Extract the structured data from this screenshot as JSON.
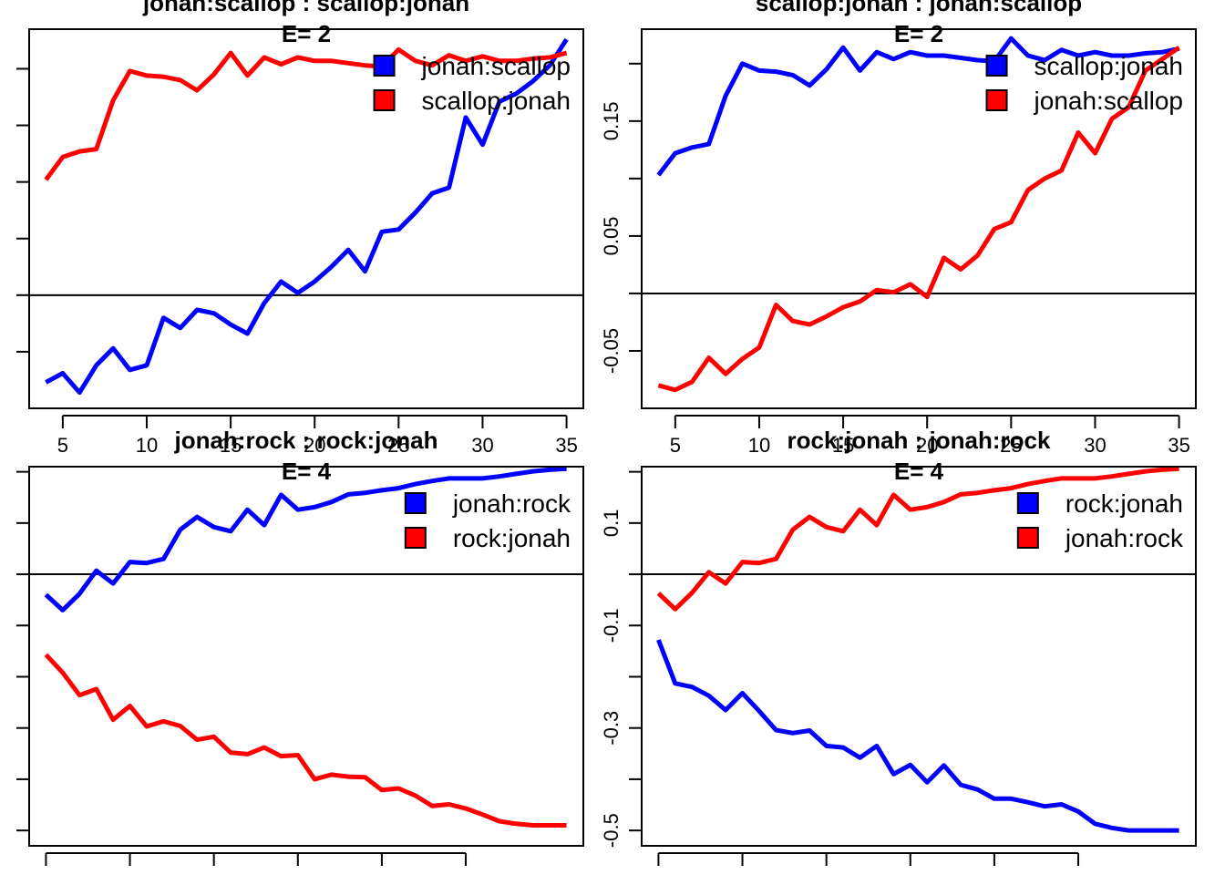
{
  "chart_data": [
    {
      "type": "line",
      "title": "jonah:scallop  :  scallop:jonah",
      "subtitle": "E= 2",
      "x": [
        4,
        5,
        6,
        7,
        8,
        9,
        10,
        11,
        12,
        13,
        14,
        15,
        16,
        17,
        18,
        19,
        20,
        21,
        22,
        23,
        24,
        25,
        26,
        27,
        28,
        29,
        30,
        31,
        32,
        33,
        34,
        35
      ],
      "xlim": [
        3,
        36
      ],
      "ylim": [
        -0.1,
        0.235
      ],
      "xticks": [
        5,
        10,
        15,
        20,
        25,
        30,
        35
      ],
      "xtick_labels": [
        "5",
        "10",
        "15",
        "20",
        "25",
        "30",
        "35"
      ],
      "yticks": [
        -0.05,
        0.0,
        0.05,
        0.1,
        0.15,
        0.2
      ],
      "ytick_labels": [],
      "hline": 0,
      "legend_position": "top-right",
      "series": [
        {
          "name": "jonah:scallop",
          "color": "#0000FF",
          "values": [
            -0.077,
            -0.069,
            -0.086,
            -0.062,
            -0.047,
            -0.066,
            -0.062,
            -0.02,
            -0.029,
            -0.013,
            -0.016,
            -0.026,
            -0.034,
            -0.007,
            0.012,
            0.002,
            0.012,
            0.025,
            0.04,
            0.021,
            0.056,
            0.058,
            0.073,
            0.09,
            0.095,
            0.157,
            0.133,
            0.171,
            0.178,
            0.189,
            0.203,
            0.226
          ]
        },
        {
          "name": "scallop:jonah",
          "color": "#FF0000",
          "values": [
            0.102,
            0.122,
            0.127,
            0.129,
            0.172,
            0.198,
            0.194,
            0.193,
            0.19,
            0.181,
            0.195,
            0.214,
            0.194,
            0.21,
            0.204,
            0.21,
            0.207,
            0.207,
            0.205,
            0.203,
            0.202,
            0.217,
            0.207,
            0.203,
            0.212,
            0.207,
            0.211,
            0.207,
            0.207,
            0.209,
            0.21,
            0.214
          ]
        }
      ]
    },
    {
      "type": "line",
      "title": "scallop:jonah  :  jonah:scallop",
      "subtitle": "E= 2",
      "x": [
        4,
        5,
        6,
        7,
        8,
        9,
        10,
        11,
        12,
        13,
        14,
        15,
        16,
        17,
        18,
        19,
        20,
        21,
        22,
        23,
        24,
        25,
        26,
        27,
        28,
        29,
        30,
        31,
        32,
        33,
        34,
        35
      ],
      "xlim": [
        3,
        36
      ],
      "ylim": [
        -0.1,
        0.23
      ],
      "xticks": [
        5,
        10,
        15,
        20,
        25,
        30,
        35
      ],
      "xtick_labels": [
        "5",
        "10",
        "15",
        "20",
        "25",
        "30",
        "35"
      ],
      "yticks": [
        -0.05,
        0.05,
        0.15
      ],
      "ytick_labels": [
        "-0.05",
        "0.05",
        "0.15"
      ],
      "yticks_minor": [
        0.0,
        0.1,
        0.2
      ],
      "hline": 0,
      "legend_position": "top-right",
      "series": [
        {
          "name": "scallop:jonah",
          "color": "#0000FF",
          "values": [
            0.103,
            0.122,
            0.127,
            0.13,
            0.172,
            0.2,
            0.194,
            0.193,
            0.19,
            0.181,
            0.195,
            0.214,
            0.194,
            0.21,
            0.204,
            0.21,
            0.207,
            0.207,
            0.205,
            0.203,
            0.202,
            0.222,
            0.207,
            0.203,
            0.212,
            0.207,
            0.21,
            0.207,
            0.207,
            0.209,
            0.21,
            0.213
          ]
        },
        {
          "name": "jonah:scallop",
          "color": "#FF0000",
          "values": [
            -0.08,
            -0.084,
            -0.077,
            -0.056,
            -0.07,
            -0.057,
            -0.047,
            -0.01,
            -0.024,
            -0.027,
            -0.02,
            -0.012,
            -0.007,
            0.003,
            0.001,
            0.008,
            -0.003,
            0.031,
            0.021,
            0.033,
            0.056,
            0.062,
            0.09,
            0.1,
            0.107,
            0.14,
            0.122,
            0.152,
            0.162,
            0.194,
            0.204,
            0.214
          ]
        }
      ]
    },
    {
      "type": "line",
      "title": "jonah:rock  :  rock:jonah",
      "subtitle": "E= 4",
      "x": [
        4,
        5,
        6,
        7,
        8,
        9,
        10,
        11,
        12,
        13,
        14,
        15,
        16,
        17,
        18,
        19,
        20,
        21,
        22,
        23,
        24,
        25,
        26,
        27,
        28,
        29,
        30,
        31,
        32,
        33,
        34,
        35
      ],
      "xlim": [
        3,
        36
      ],
      "ylim": [
        -0.53,
        0.21
      ],
      "xticks": [
        4,
        9,
        14,
        19,
        24,
        29
      ],
      "xtick_labels": [],
      "yticks": [
        -0.5,
        -0.4,
        -0.3,
        -0.2,
        -0.1,
        0.0,
        0.1,
        0.2
      ],
      "ytick_labels": [],
      "hline": 0,
      "legend_position": "top-right",
      "series": [
        {
          "name": "jonah:rock",
          "color": "#0000FF",
          "values": [
            -0.04,
            -0.07,
            -0.038,
            0.007,
            -0.018,
            0.024,
            0.022,
            0.03,
            0.087,
            0.112,
            0.092,
            0.084,
            0.126,
            0.096,
            0.155,
            0.126,
            0.131,
            0.141,
            0.156,
            0.159,
            0.164,
            0.168,
            0.176,
            0.182,
            0.187,
            0.187,
            0.187,
            0.191,
            0.196,
            0.201,
            0.204,
            0.206
          ]
        },
        {
          "name": "rock:jonah",
          "color": "#FF0000",
          "values": [
            -0.157,
            -0.192,
            -0.236,
            -0.224,
            -0.284,
            -0.257,
            -0.297,
            -0.287,
            -0.296,
            -0.323,
            -0.317,
            -0.348,
            -0.351,
            -0.338,
            -0.355,
            -0.353,
            -0.4,
            -0.391,
            -0.395,
            -0.396,
            -0.421,
            -0.418,
            -0.432,
            -0.452,
            -0.449,
            -0.457,
            -0.469,
            -0.482,
            -0.487,
            -0.49,
            -0.49,
            -0.49
          ]
        }
      ]
    },
    {
      "type": "line",
      "title": "rock:jonah  :  jonah:rock",
      "subtitle": "E= 4",
      "x": [
        4,
        5,
        6,
        7,
        8,
        9,
        10,
        11,
        12,
        13,
        14,
        15,
        16,
        17,
        18,
        19,
        20,
        21,
        22,
        23,
        24,
        25,
        26,
        27,
        28,
        29,
        30,
        31,
        32,
        33,
        34,
        35
      ],
      "xlim": [
        3,
        36
      ],
      "ylim": [
        -0.53,
        0.21
      ],
      "xticks": [
        4,
        9,
        14,
        19,
        24,
        29
      ],
      "xtick_labels": [],
      "yticks": [
        -0.5,
        -0.3,
        -0.1,
        0.1
      ],
      "ytick_labels": [
        "-0.5",
        "-0.3",
        "-0.1",
        "0.1"
      ],
      "yticks_minor": [
        -0.4,
        -0.2,
        0.0,
        0.2
      ],
      "hline": 0,
      "legend_position": "top-right",
      "series": [
        {
          "name": "rock:jonah",
          "color": "#0000FF",
          "values": [
            -0.128,
            -0.213,
            -0.22,
            -0.237,
            -0.265,
            -0.232,
            -0.267,
            -0.304,
            -0.31,
            -0.305,
            -0.335,
            -0.338,
            -0.358,
            -0.335,
            -0.39,
            -0.372,
            -0.406,
            -0.373,
            -0.411,
            -0.42,
            -0.438,
            -0.438,
            -0.445,
            -0.453,
            -0.449,
            -0.463,
            -0.487,
            -0.495,
            -0.5,
            -0.5,
            -0.5,
            -0.5
          ]
        },
        {
          "name": "jonah:rock",
          "color": "#FF0000",
          "values": [
            -0.037,
            -0.068,
            -0.036,
            0.004,
            -0.018,
            0.024,
            0.022,
            0.03,
            0.087,
            0.112,
            0.092,
            0.084,
            0.126,
            0.096,
            0.155,
            0.126,
            0.131,
            0.141,
            0.156,
            0.159,
            0.164,
            0.168,
            0.176,
            0.182,
            0.187,
            0.187,
            0.187,
            0.191,
            0.196,
            0.201,
            0.204,
            0.206
          ]
        }
      ]
    }
  ]
}
